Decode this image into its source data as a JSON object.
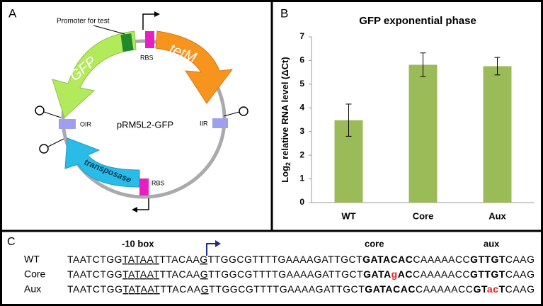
{
  "panel_a": {
    "label": "A",
    "promoter_label": "Promoter for test",
    "gfp": "GFP",
    "tetm": "tetM",
    "rbs_top": "RBS",
    "rbs_bottom": "RBS",
    "oir": "OIR",
    "iir": "IIR",
    "plasmid": "pRM5L2-GFP",
    "transposase": "transposase"
  },
  "panel_b_label": "B",
  "chart_data": {
    "type": "bar",
    "title": "GFP exponential phase",
    "y_label": [
      "Log",
      "2",
      "relative RNA level (ΔCt)"
    ],
    "categories": [
      "WT",
      "Core",
      "Aux"
    ],
    "values": [
      3.48,
      5.82,
      5.76
    ],
    "errors": [
      0.68,
      0.5,
      0.37
    ],
    "color": "#9bbb59",
    "ylim": [
      0,
      7
    ],
    "yticks": [
      0,
      1,
      2,
      3,
      4,
      5,
      6,
      7
    ],
    "grid": false
  },
  "panel_c": {
    "label": "C",
    "headers": [
      "-10 box",
      "core",
      "aux"
    ],
    "rows": [
      {
        "name": "WT",
        "segments": [
          {
            "text": "TAATCTGG",
            "style": "plain"
          },
          {
            "text": "TATAAT",
            "style": "underline"
          },
          {
            "text": "TTACAA",
            "style": "plain"
          },
          {
            "text": "G",
            "style": "underline"
          },
          {
            "text": "TTGGCGTTTTGAAAAGATTGCT",
            "style": "plain"
          },
          {
            "text": "GATACAC",
            "style": "bold"
          },
          {
            "text": "CAAAAACC",
            "style": "plain"
          },
          {
            "text": "GTTGT",
            "style": "bold"
          },
          {
            "text": "CAAG",
            "style": "plain"
          }
        ]
      },
      {
        "name": "Core",
        "segments": [
          {
            "text": "TAATCTGG",
            "style": "plain"
          },
          {
            "text": "TATAAT",
            "style": "underline"
          },
          {
            "text": "TTACAA",
            "style": "plain"
          },
          {
            "text": "G",
            "style": "underline"
          },
          {
            "text": "TTGGCGTTTTGAAAAGATTGCT",
            "style": "plain"
          },
          {
            "text": "GATA",
            "style": "bold"
          },
          {
            "text": "g",
            "style": "red"
          },
          {
            "text": "AC",
            "style": "bold"
          },
          {
            "text": "CAAAAACC",
            "style": "plain"
          },
          {
            "text": "GTTGT",
            "style": "bold"
          },
          {
            "text": "CAAG",
            "style": "plain"
          }
        ]
      },
      {
        "name": "Aux",
        "segments": [
          {
            "text": "TAATCTGG",
            "style": "plain"
          },
          {
            "text": "TATAAT",
            "style": "underline"
          },
          {
            "text": "TTACAA",
            "style": "plain"
          },
          {
            "text": "G",
            "style": "underline"
          },
          {
            "text": "TTGGCGTTTTGAAAAGATTGCT",
            "style": "plain"
          },
          {
            "text": "GATACAC",
            "style": "bold"
          },
          {
            "text": "CAAAAACC",
            "style": "plain"
          },
          {
            "text": "GT",
            "style": "bold"
          },
          {
            "text": "ac",
            "style": "red"
          },
          {
            "text": "T",
            "style": "bold"
          },
          {
            "text": "CAAG",
            "style": "plain"
          }
        ]
      }
    ]
  }
}
